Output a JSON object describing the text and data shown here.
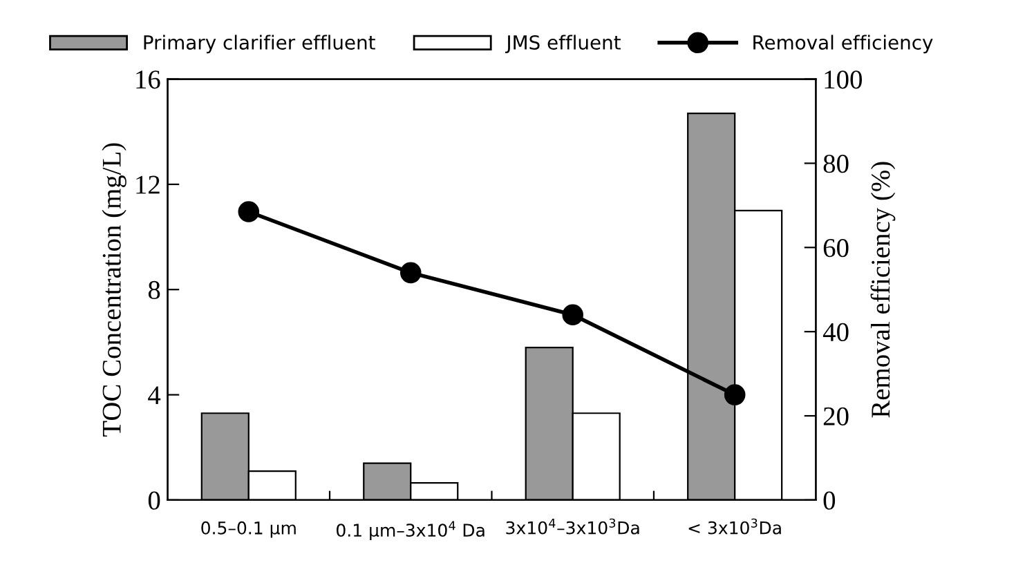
{
  "chart_data": {
    "type": "bar",
    "categories": [
      "0.5–0.1 μm",
      "0.1 μm–3x10$^{4}$ Da",
      "3x10$^{4}$–3x10$^{3}$Da",
      "< 3x10$^{3}$Da"
    ],
    "ylabel": "TOC Concentration (mg/L)",
    "y2label": "Removal efficiency (%)",
    "series": [
      {
        "name": "Primary clarifier effluent",
        "color": "#999999",
        "values": [
          3.3,
          1.4,
          5.8,
          14.7
        ]
      },
      {
        "name": "JMS effluent",
        "color": "#ffffff",
        "values": [
          1.1,
          0.65,
          3.3,
          11
        ]
      },
      {
        "name": "Removal efficiency",
        "type": "line",
        "axis": "y2",
        "color": "#000000",
        "marker": "circle",
        "values": [
          68.5,
          54,
          44,
          25
        ]
      }
    ],
    "ylim": [
      0,
      16
    ],
    "yticks": [
      0,
      4,
      8,
      12,
      16
    ],
    "y2lim": [
      0,
      100
    ],
    "y2ticks": [
      0,
      20,
      40,
      60,
      80,
      100
    ],
    "legend": "top",
    "grid": false
  }
}
